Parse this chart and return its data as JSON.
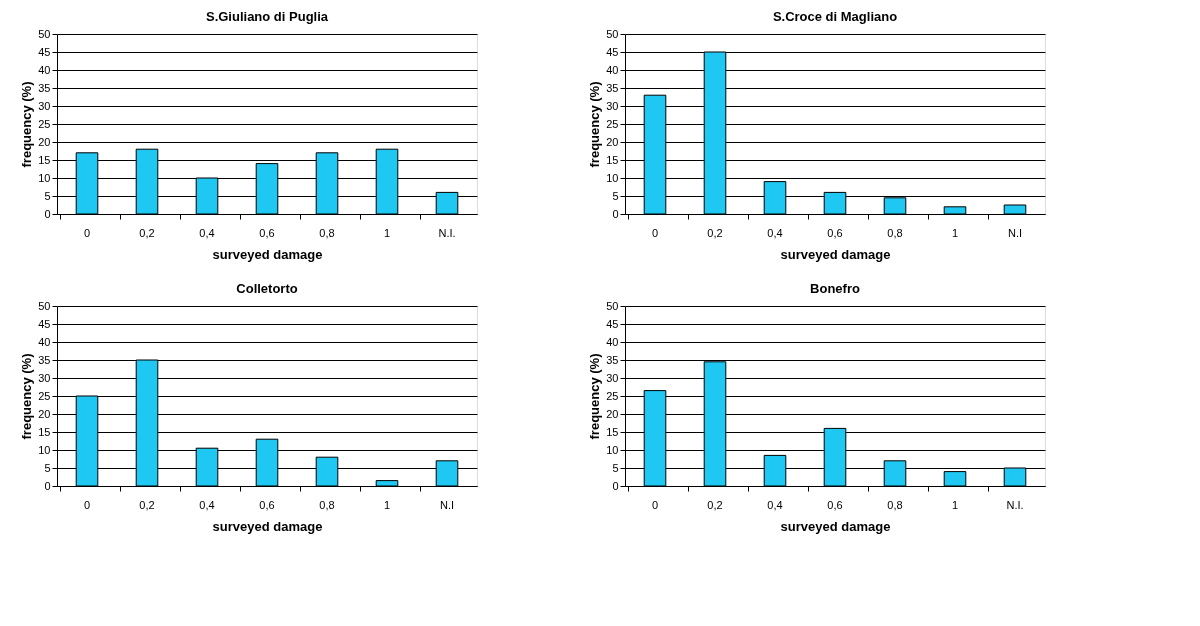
{
  "chart_data": [
    {
      "type": "bar",
      "title": "S.Giuliano di Puglia",
      "xlabel": "surveyed damage",
      "ylabel": "frequency (%)",
      "categories": [
        "0",
        "0,2",
        "0,4",
        "0,6",
        "0,8",
        "1",
        "N.I."
      ],
      "values": [
        17,
        18,
        10,
        14,
        17,
        18,
        6
      ],
      "color": "#1ec8f2",
      "ylim": [
        0,
        50
      ],
      "yticks": [
        0,
        5,
        10,
        15,
        20,
        25,
        30,
        35,
        40,
        45,
        50
      ],
      "grid": "y"
    },
    {
      "type": "bar",
      "title": "S.Croce di Magliano",
      "xlabel": "surveyed damage",
      "ylabel": "frequency (%)",
      "categories": [
        "0",
        "0,2",
        "0,4",
        "0,6",
        "0,8",
        "1",
        "N.I"
      ],
      "values": [
        33,
        45,
        9,
        6,
        4.5,
        2,
        2.5
      ],
      "color": "#1ec8f2",
      "ylim": [
        0,
        50
      ],
      "yticks": [
        0,
        5,
        10,
        15,
        20,
        25,
        30,
        35,
        40,
        45,
        50
      ],
      "grid": "y"
    },
    {
      "type": "bar",
      "title": "Colletorto",
      "xlabel": "surveyed damage",
      "ylabel": "frequency (%)",
      "categories": [
        "0",
        "0,2",
        "0,4",
        "0,6",
        "0,8",
        "1",
        "N.I"
      ],
      "values": [
        25,
        35,
        10.5,
        13,
        8,
        1.5,
        7
      ],
      "color": "#1ec8f2",
      "ylim": [
        0,
        50
      ],
      "yticks": [
        0,
        5,
        10,
        15,
        20,
        25,
        30,
        35,
        40,
        45,
        50
      ],
      "grid": "y"
    },
    {
      "type": "bar",
      "title": "Bonefro",
      "xlabel": "surveyed damage",
      "ylabel": "frequency (%)",
      "categories": [
        "0",
        "0,2",
        "0,4",
        "0,6",
        "0,8",
        "1",
        "N.I."
      ],
      "values": [
        26.5,
        34.5,
        8.5,
        16,
        7,
        4,
        5
      ],
      "color": "#1ec8f2",
      "ylim": [
        0,
        50
      ],
      "yticks": [
        0,
        5,
        10,
        15,
        20,
        25,
        30,
        35,
        40,
        45,
        50
      ],
      "grid": "y"
    }
  ]
}
